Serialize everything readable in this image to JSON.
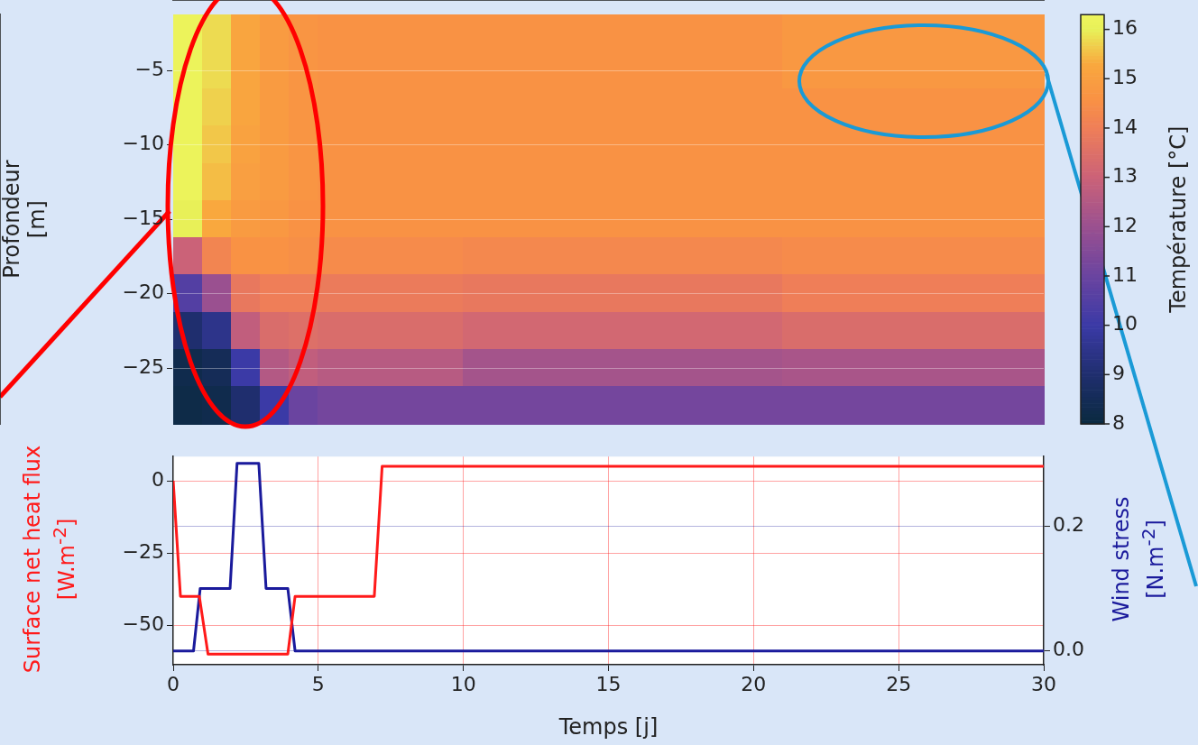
{
  "chart_data": [
    {
      "type": "heatmap",
      "ylabel": "Profondeur [m]",
      "clabel": "Température [°C]",
      "categories": [
        null,
        null,
        null,
        null,
        null,
        null,
        null,
        null,
        null,
        null,
        null,
        null,
        null,
        null,
        null,
        null,
        null,
        null,
        null,
        null,
        null,
        null,
        null,
        null,
        null,
        null,
        null,
        null,
        null,
        null
      ],
      "y_categories": [
        null,
        "−5",
        null,
        "−10",
        null,
        "−15",
        null,
        "−20",
        null,
        "−25",
        null
      ],
      "cells": [
        [
          16.2,
          15.8,
          15.2,
          14.9,
          14.7,
          14.6,
          14.6,
          14.6,
          14.6,
          14.6,
          14.6,
          14.6,
          14.6,
          14.6,
          14.6,
          14.6,
          14.6,
          14.6,
          14.6,
          14.6,
          14.6,
          14.8,
          14.8,
          14.8,
          14.8,
          14.8,
          14.8,
          14.8,
          14.8,
          14.8
        ],
        [
          16.2,
          15.8,
          15.2,
          14.9,
          14.7,
          14.6,
          14.6,
          14.6,
          14.6,
          14.6,
          14.6,
          14.6,
          14.6,
          14.6,
          14.6,
          14.6,
          14.6,
          14.6,
          14.6,
          14.6,
          14.6,
          14.8,
          14.8,
          14.8,
          14.8,
          14.8,
          14.8,
          14.8,
          14.8,
          14.8
        ],
        [
          16.2,
          15.7,
          15.2,
          14.9,
          14.7,
          14.6,
          14.6,
          14.6,
          14.6,
          14.6,
          14.6,
          14.6,
          14.6,
          14.6,
          14.6,
          14.6,
          14.6,
          14.6,
          14.6,
          14.6,
          14.6,
          14.6,
          14.6,
          14.6,
          14.6,
          14.6,
          14.6,
          14.6,
          14.6,
          14.6
        ],
        [
          16.2,
          15.6,
          15.1,
          14.9,
          14.7,
          14.6,
          14.6,
          14.6,
          14.6,
          14.6,
          14.6,
          14.6,
          14.6,
          14.6,
          14.6,
          14.6,
          14.6,
          14.6,
          14.6,
          14.6,
          14.6,
          14.6,
          14.6,
          14.6,
          14.6,
          14.6,
          14.6,
          14.6,
          14.6,
          14.6
        ],
        [
          16.2,
          15.5,
          15.0,
          14.9,
          14.7,
          14.6,
          14.6,
          14.6,
          14.6,
          14.6,
          14.6,
          14.6,
          14.6,
          14.6,
          14.6,
          14.6,
          14.6,
          14.6,
          14.6,
          14.6,
          14.6,
          14.6,
          14.6,
          14.6,
          14.6,
          14.6,
          14.6,
          14.6,
          14.6,
          14.6
        ],
        [
          16.0,
          15.3,
          14.9,
          14.8,
          14.6,
          14.6,
          14.6,
          14.6,
          14.6,
          14.6,
          14.6,
          14.6,
          14.6,
          14.6,
          14.6,
          14.6,
          14.6,
          14.6,
          14.6,
          14.6,
          14.6,
          14.6,
          14.6,
          14.6,
          14.6,
          14.6,
          14.6,
          14.6,
          14.6,
          14.6
        ],
        [
          13.0,
          14.2,
          14.6,
          14.6,
          14.5,
          14.4,
          14.4,
          14.4,
          14.4,
          14.4,
          14.3,
          14.3,
          14.3,
          14.3,
          14.3,
          14.3,
          14.3,
          14.3,
          14.3,
          14.3,
          14.3,
          14.4,
          14.4,
          14.4,
          14.4,
          14.4,
          14.4,
          14.4,
          14.4,
          14.4
        ],
        [
          10.5,
          12.0,
          13.8,
          14.0,
          14.0,
          13.9,
          13.9,
          13.9,
          13.9,
          13.9,
          13.8,
          13.8,
          13.8,
          13.8,
          13.8,
          13.8,
          13.8,
          13.8,
          13.8,
          13.8,
          13.8,
          14.0,
          14.0,
          14.0,
          14.0,
          14.0,
          14.0,
          14.0,
          14.0,
          14.0
        ],
        [
          9.0,
          9.5,
          12.8,
          13.4,
          13.5,
          13.4,
          13.4,
          13.4,
          13.4,
          13.4,
          13.2,
          13.2,
          13.2,
          13.2,
          13.2,
          13.2,
          13.2,
          13.2,
          13.2,
          13.2,
          13.2,
          13.4,
          13.4,
          13.4,
          13.4,
          13.4,
          13.4,
          13.4,
          13.4,
          13.4
        ],
        [
          8.3,
          8.5,
          10.0,
          12.5,
          12.8,
          12.6,
          12.6,
          12.6,
          12.6,
          12.6,
          12.2,
          12.2,
          12.2,
          12.2,
          12.2,
          12.2,
          12.2,
          12.2,
          12.2,
          12.2,
          12.2,
          12.3,
          12.3,
          12.3,
          12.3,
          12.3,
          12.3,
          12.3,
          12.3,
          12.3
        ],
        [
          8.2,
          8.3,
          9.0,
          10.0,
          11.0,
          11.2,
          11.2,
          11.2,
          11.2,
          11.2,
          11.2,
          11.2,
          11.2,
          11.2,
          11.2,
          11.2,
          11.2,
          11.2,
          11.2,
          11.2,
          11.2,
          11.2,
          11.2,
          11.2,
          11.2,
          11.2,
          11.2,
          11.2,
          11.2,
          11.2
        ]
      ],
      "clim": [
        8,
        16.3
      ],
      "cticks": [
        8,
        9,
        10,
        11,
        12,
        13,
        14,
        15,
        16
      ],
      "grid": "y"
    },
    {
      "type": "line",
      "xlabel": "Temps [j]",
      "ylabel": "Surface net heat flux [W.m$^{-2}$]",
      "y2label": "Wind stress [N.m$^{-2}$]",
      "series": [
        {
          "color": "#ff1a1a",
          "x": [
            0,
            0.25,
            0.9,
            1.2,
            3.95,
            4.2,
            6.93,
            7.2,
            30
          ],
          "values": [
            0,
            -40,
            -40,
            -60,
            -60,
            -40,
            -40,
            5,
            5
          ]
        },
        {
          "color": "#1a1a9c",
          "axis": "y2",
          "x": [
            0,
            0.7,
            0.93,
            1.96,
            2.2,
            2.95,
            3.2,
            3.95,
            4.2,
            30
          ],
          "values": [
            0,
            0,
            0.1,
            0.1,
            0.3,
            0.3,
            0.1,
            0.1,
            0,
            0
          ]
        }
      ],
      "xlim": [
        0,
        30
      ],
      "xticks": [
        0,
        5,
        10,
        15,
        20,
        25,
        30
      ],
      "ylim": [
        -63.7,
        8.4
      ],
      "yticks": [
        0,
        -25,
        -50
      ],
      "y2lim": [
        -0.022,
        0.311
      ],
      "y2ticks": [
        {
          "value": 0,
          "label": "0.0"
        },
        {
          "value": 0.2,
          "label": "0.2"
        }
      ],
      "grid": true,
      "legend": false,
      "marker": "none",
      "line_style": "solid"
    }
  ]
}
